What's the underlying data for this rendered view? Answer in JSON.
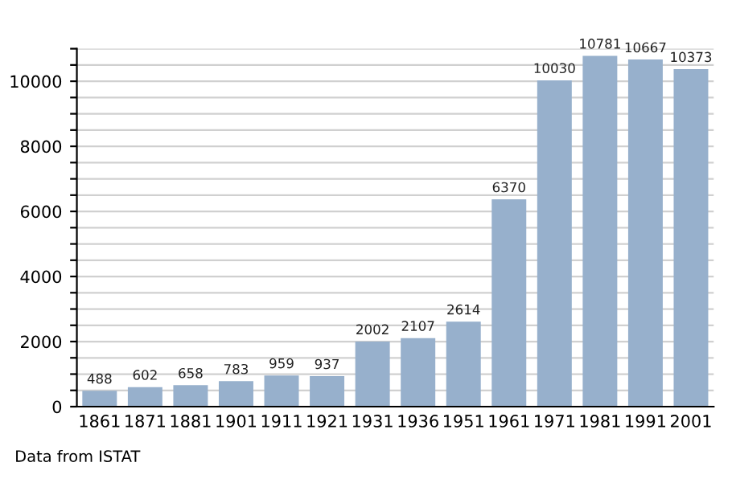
{
  "chart_data": {
    "type": "bar",
    "categories": [
      "1861",
      "1871",
      "1881",
      "1901",
      "1911",
      "1921",
      "1931",
      "1936",
      "1951",
      "1961",
      "1971",
      "1981",
      "1991",
      "2001"
    ],
    "values": [
      488,
      602,
      658,
      783,
      959,
      937,
      2002,
      2107,
      2614,
      6370,
      10030,
      10781,
      10667,
      10373
    ],
    "color": "#97b0cc",
    "data_labels": true,
    "ylim": [
      0,
      11000
    ],
    "yticks": [
      0,
      {
        "value": 500,
        "label": null
      },
      {
        "value": 1000,
        "label": null
      },
      {
        "value": 1500,
        "label": null
      },
      2000,
      {
        "value": 2500,
        "label": null
      },
      {
        "value": 3000,
        "label": null
      },
      {
        "value": 3500,
        "label": null
      },
      4000,
      {
        "value": 4500,
        "label": null
      },
      {
        "value": 5000,
        "label": null
      },
      {
        "value": 5500,
        "label": null
      },
      6000,
      {
        "value": 6500,
        "label": null
      },
      {
        "value": 7000,
        "label": null
      },
      {
        "value": 7500,
        "label": null
      },
      8000,
      {
        "value": 8500,
        "label": null
      },
      {
        "value": 9000,
        "label": null
      },
      {
        "value": 9500,
        "label": null
      },
      10000,
      {
        "value": 10500,
        "label": null
      },
      {
        "value": 11000,
        "label": null
      }
    ],
    "grid": "y",
    "annotations": [
      "Data from ISTAT"
    ]
  }
}
